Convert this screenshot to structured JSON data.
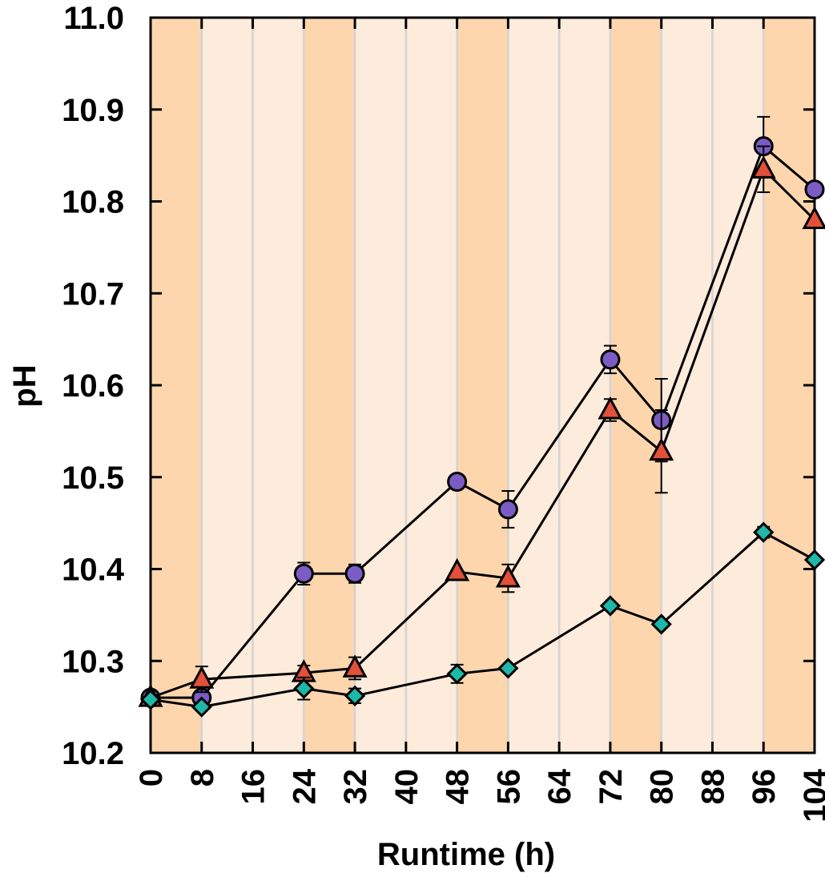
{
  "chart_data": {
    "type": "line",
    "title": "",
    "xlabel": "Runtime (h)",
    "ylabel": "pH",
    "xlim": [
      0,
      104
    ],
    "ylim": [
      10.2,
      11.0
    ],
    "xticks": [
      "0",
      "8",
      "16",
      "24",
      "32",
      "40",
      "48",
      "56",
      "64",
      "72",
      "80",
      "88",
      "96",
      "104"
    ],
    "yticks": [
      "10.2",
      "10.3",
      "10.4",
      "10.5",
      "10.6",
      "10.7",
      "10.8",
      "10.9",
      "11.0"
    ],
    "shaded_bands": [
      {
        "from": 0,
        "to": 8,
        "shade": "dark"
      },
      {
        "from": 8,
        "to": 24,
        "shade": "light"
      },
      {
        "from": 24,
        "to": 32,
        "shade": "dark"
      },
      {
        "from": 32,
        "to": 48,
        "shade": "light"
      },
      {
        "from": 48,
        "to": 56,
        "shade": "dark"
      },
      {
        "from": 56,
        "to": 72,
        "shade": "light"
      },
      {
        "from": 72,
        "to": 80,
        "shade": "dark"
      },
      {
        "from": 80,
        "to": 96,
        "shade": "light"
      },
      {
        "from": 96,
        "to": 104,
        "shade": "dark"
      }
    ],
    "series": [
      {
        "name": "circle-series",
        "marker": "circle",
        "color": "#7B5CC4",
        "x": [
          0,
          8,
          24,
          32,
          48,
          56,
          72,
          80,
          96,
          104
        ],
        "y": [
          10.26,
          10.26,
          10.395,
          10.395,
          10.495,
          10.465,
          10.628,
          10.562,
          10.86,
          10.813
        ],
        "err": [
          0.0,
          0.008,
          0.012,
          0.01,
          0.0,
          0.02,
          0.015,
          0.045,
          0.032,
          0.0
        ]
      },
      {
        "name": "triangle-series",
        "marker": "triangle",
        "color": "#E2503A",
        "x": [
          0,
          8,
          24,
          32,
          48,
          56,
          72,
          80,
          96,
          104
        ],
        "y": [
          10.26,
          10.28,
          10.287,
          10.292,
          10.397,
          10.39,
          10.573,
          10.528,
          10.835,
          10.78
        ],
        "err": [
          0.0,
          0.014,
          0.008,
          0.012,
          0.0,
          0.015,
          0.012,
          0.045,
          0.025,
          0.0
        ]
      },
      {
        "name": "diamond-series",
        "marker": "diamond",
        "color": "#1DB8A8",
        "x": [
          0,
          8,
          24,
          32,
          48,
          56,
          72,
          80,
          96,
          104
        ],
        "y": [
          10.258,
          10.25,
          10.27,
          10.262,
          10.286,
          10.292,
          10.36,
          10.34,
          10.44,
          10.41
        ],
        "err": [
          0.0,
          0.0,
          0.012,
          0.008,
          0.01,
          0.0,
          0.0,
          0.0,
          0.006,
          0.0
        ]
      }
    ]
  },
  "colors": {
    "band_dark": "#FDD6AE",
    "band_light": "#FDEBDB",
    "grid": "#D3D3D3",
    "line": "#000000"
  }
}
